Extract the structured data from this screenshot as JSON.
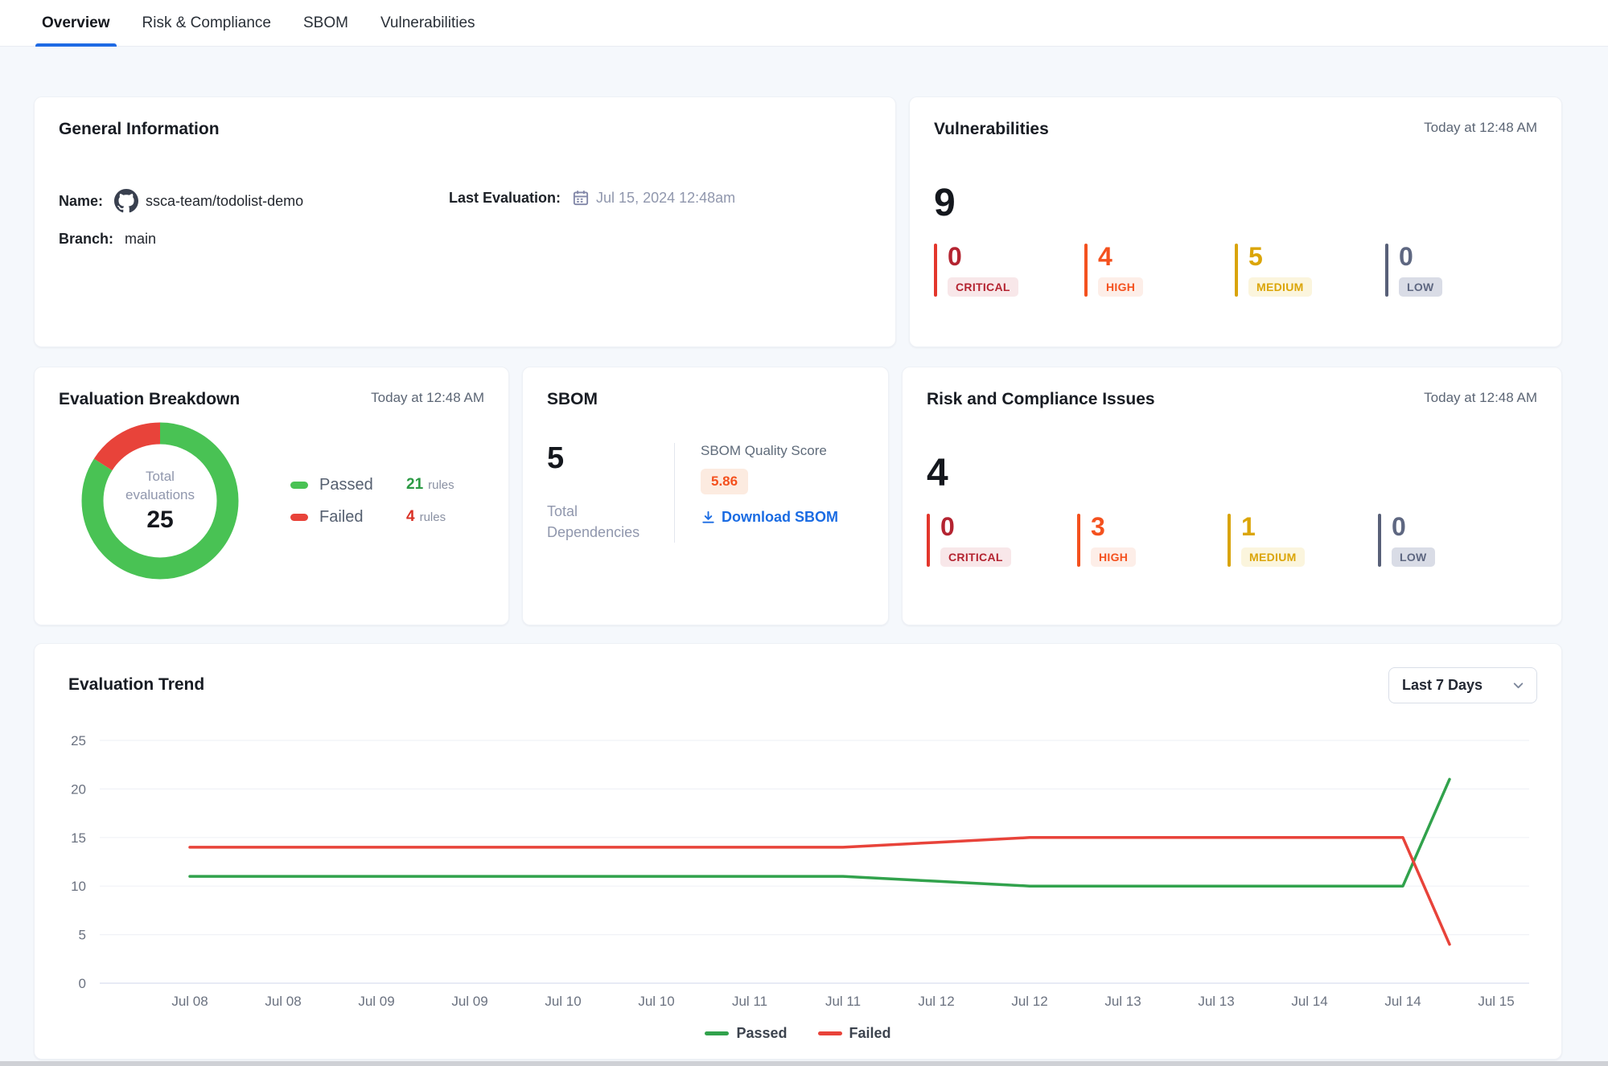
{
  "tabs": {
    "items": [
      {
        "label": "Overview",
        "active": true
      },
      {
        "label": "Risk & Compliance",
        "active": false
      },
      {
        "label": "SBOM",
        "active": false
      },
      {
        "label": "Vulnerabilities",
        "active": false
      }
    ],
    "accent_color": "#1e6ae4"
  },
  "general": {
    "title": "General Information",
    "name_label": "Name:",
    "name_value": "ssca-team/todolist-demo",
    "branch_label": "Branch:",
    "branch_value": "main",
    "last_eval_label": "Last Evaluation:",
    "last_eval_value": "Jul 15, 2024 12:48am"
  },
  "vulnerabilities": {
    "title": "Vulnerabilities",
    "timestamp": "Today at 12:48 AM",
    "total": 9,
    "severities": [
      {
        "level": "CRITICAL",
        "count": 0,
        "color": "#b42431",
        "bar_color": "#e3362c",
        "badge_bg": "#f8e7e9"
      },
      {
        "level": "HIGH",
        "count": 4,
        "color": "#f4511e",
        "bar_color": "#f4511e",
        "badge_bg": "#fdeee8"
      },
      {
        "level": "MEDIUM",
        "count": 5,
        "color": "#dba508",
        "bar_color": "#d9a40a",
        "badge_bg": "#fbf5dd"
      },
      {
        "level": "LOW",
        "count": 0,
        "color": "#5e6781",
        "bar_color": "#586078",
        "badge_bg": "#d9dce6"
      }
    ]
  },
  "evaluation_breakdown": {
    "title": "Evaluation Breakdown",
    "timestamp": "Today at 12:48 AM",
    "center_label": "Total evaluations",
    "total": 25,
    "passed": {
      "label": "Passed",
      "count": 21,
      "unit": "rules",
      "color": "#49c254",
      "count_color": "#2b9a44"
    },
    "failed": {
      "label": "Failed",
      "count": 4,
      "unit": "rules",
      "color": "#e8433a",
      "count_color": "#d93025"
    }
  },
  "sbom": {
    "title": "SBOM",
    "total_dependencies": 5,
    "total_label": "Total Dependencies",
    "score_label": "SBOM Quality Score",
    "score": "5.86",
    "score_color": "#f4511e",
    "download_label": "Download SBOM",
    "link_color": "#1b6ce3"
  },
  "risk_compliance": {
    "title": "Risk and Compliance Issues",
    "timestamp": "Today at 12:48 AM",
    "total": 4,
    "severities": [
      {
        "level": "CRITICAL",
        "count": 0,
        "color": "#b42431",
        "bar_color": "#e3362c",
        "badge_bg": "#f8e7e9"
      },
      {
        "level": "HIGH",
        "count": 3,
        "color": "#f4511e",
        "bar_color": "#f4511e",
        "badge_bg": "#fdeee8"
      },
      {
        "level": "MEDIUM",
        "count": 1,
        "color": "#dba508",
        "bar_color": "#d9a40a",
        "badge_bg": "#fbf5dd"
      },
      {
        "level": "LOW",
        "count": 0,
        "color": "#5e6781",
        "bar_color": "#586078",
        "badge_bg": "#d9dce6"
      }
    ]
  },
  "trend": {
    "title": "Evaluation Trend",
    "range_label": "Last 7 Days"
  },
  "chart_data": {
    "type": "line",
    "title": "Evaluation Trend",
    "x": [
      "Jul 08",
      "Jul 08",
      "Jul 09",
      "Jul 09",
      "Jul 10",
      "Jul 10",
      "Jul 11",
      "Jul 11",
      "Jul 12",
      "Jul 12",
      "Jul 13",
      "Jul 13",
      "Jul 14",
      "Jul 14",
      "Jul 15"
    ],
    "x_positions": [
      0,
      1,
      2,
      3,
      4,
      5,
      6,
      7,
      8,
      9,
      10,
      11,
      12,
      13,
      13.5
    ],
    "series": [
      {
        "name": "Passed",
        "color": "#31a24c",
        "values": [
          11,
          11,
          11,
          11,
          11,
          11,
          11,
          11,
          10.5,
          10,
          10,
          10,
          10,
          10,
          21
        ]
      },
      {
        "name": "Failed",
        "color": "#e8433a",
        "values": [
          14,
          14,
          14,
          14,
          14,
          14,
          14,
          14,
          14.5,
          15,
          15,
          15,
          15,
          15,
          4
        ]
      }
    ],
    "ylim": [
      0,
      25
    ],
    "yticks": [
      0,
      5,
      10,
      15,
      20,
      25
    ],
    "grid": true,
    "legend_position": "bottom"
  }
}
